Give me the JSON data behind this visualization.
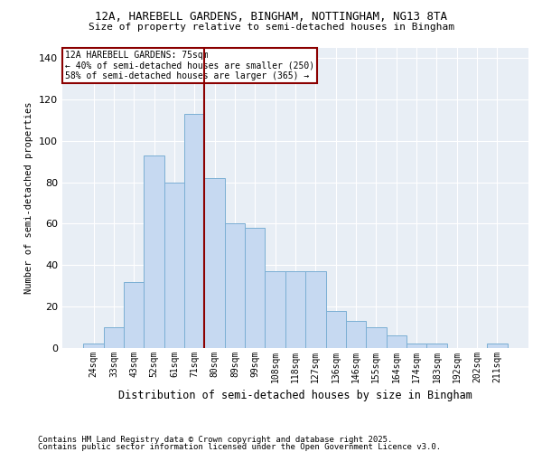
{
  "title1": "12A, HAREBELL GARDENS, BINGHAM, NOTTINGHAM, NG13 8TA",
  "title2": "Size of property relative to semi-detached houses in Bingham",
  "xlabel": "Distribution of semi-detached houses by size in Bingham",
  "ylabel": "Number of semi-detached properties",
  "bar_labels": [
    "24sqm",
    "33sqm",
    "43sqm",
    "52sqm",
    "61sqm",
    "71sqm",
    "80sqm",
    "89sqm",
    "99sqm",
    "108sqm",
    "118sqm",
    "127sqm",
    "136sqm",
    "146sqm",
    "155sqm",
    "164sqm",
    "174sqm",
    "183sqm",
    "192sqm",
    "202sqm",
    "211sqm"
  ],
  "bar_values": [
    2,
    10,
    32,
    93,
    80,
    113,
    82,
    60,
    58,
    37,
    37,
    37,
    18,
    13,
    10,
    6,
    2,
    2,
    0,
    0,
    2
  ],
  "bar_color": "#c6d9f1",
  "bar_edgecolor": "#7bafd4",
  "vline_color": "#8b0000",
  "annotation_title": "12A HAREBELL GARDENS: 75sqm",
  "annotation_line1": "← 40% of semi-detached houses are smaller (250)",
  "annotation_line2": "58% of semi-detached houses are larger (365) →",
  "annotation_box_edgecolor": "#8b0000",
  "footer1": "Contains HM Land Registry data © Crown copyright and database right 2025.",
  "footer2": "Contains public sector information licensed under the Open Government Licence v3.0.",
  "ylim": [
    0,
    145
  ],
  "yticks": [
    0,
    20,
    40,
    60,
    80,
    100,
    120,
    140
  ],
  "bg_color": "#ffffff",
  "plot_bg_color": "#e8eef5",
  "grid_color": "#ffffff"
}
